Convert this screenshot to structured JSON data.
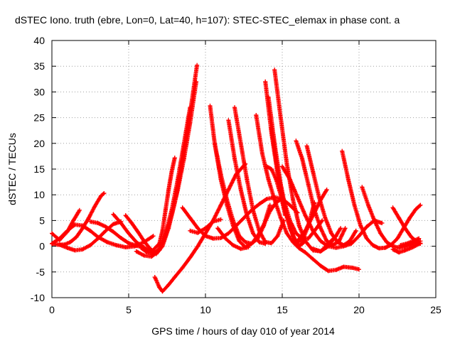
{
  "chart_data": {
    "type": "scatter",
    "title": "dSTEC Iono. truth (ebre, Lon=0, Lat=40, h=107): STEC-STEC_elemax in phase cont. a",
    "xlabel": "GPS time / hours of day 010 of year 2014",
    "ylabel": "dSTEC  / TECUs",
    "xlim": [
      0,
      25
    ],
    "ylim": [
      -10,
      40
    ],
    "xticks": [
      0,
      5,
      10,
      15,
      20,
      25
    ],
    "yticks": [
      -10,
      -5,
      0,
      5,
      10,
      15,
      20,
      25,
      30,
      35,
      40
    ],
    "grid": true,
    "marker": "plus",
    "color": "#ff0000",
    "series": [
      {
        "x": [
          0.0,
          0.4,
          0.8,
          1.2,
          1.6,
          2.0,
          2.4,
          2.8,
          3.2,
          3.4
        ],
        "y": [
          0.5,
          0.3,
          0.3,
          0.8,
          1.8,
          3.5,
          5.5,
          7.8,
          9.8,
          10.3
        ]
      },
      {
        "x": [
          0.0,
          0.5,
          1.0,
          1.4,
          1.8
        ],
        "y": [
          2.5,
          1.2,
          2.8,
          5.0,
          7.0
        ]
      },
      {
        "x": [
          0.0,
          0.5,
          1.0,
          1.5,
          2.0,
          2.5,
          3.0,
          3.6,
          4.2,
          4.8,
          5.4,
          6.0,
          6.6
        ],
        "y": [
          0.5,
          1.5,
          3.0,
          4.2,
          4.0,
          3.0,
          1.8,
          0.8,
          0.2,
          -0.2,
          0.0,
          0.8,
          2.0
        ]
      },
      {
        "x": [
          0.5,
          1.0,
          1.5,
          2.0,
          2.5,
          3.0,
          3.5,
          4.0,
          4.5
        ],
        "y": [
          0.3,
          -0.3,
          -0.8,
          -0.6,
          0.2,
          1.5,
          3.0,
          4.3,
          4.8
        ]
      },
      {
        "x": [
          2.5,
          3.0,
          3.5,
          4.0,
          4.5,
          5.0,
          5.5,
          6.0
        ],
        "y": [
          4.8,
          4.5,
          3.8,
          2.8,
          1.6,
          0.6,
          0.1,
          -0.2
        ]
      },
      {
        "x": [
          4.0,
          4.5,
          5.0,
          5.5,
          6.0,
          6.5,
          7.0,
          7.2,
          7.4,
          7.6,
          7.8,
          8.0
        ],
        "y": [
          6.2,
          4.5,
          2.5,
          0.8,
          -0.3,
          -1.0,
          0.5,
          3.0,
          7.0,
          11.0,
          14.5,
          17.2
        ]
      },
      {
        "x": [
          4.8,
          5.2,
          5.6,
          6.0,
          6.4,
          6.8,
          7.2,
          7.6,
          8.0,
          8.4,
          8.8,
          9.2,
          9.45
        ],
        "y": [
          6.0,
          4.5,
          2.8,
          1.0,
          -0.5,
          -1.5,
          0.0,
          3.5,
          8.5,
          15.0,
          22.0,
          30.0,
          35.2
        ]
      },
      {
        "x": [
          5.5,
          6.0,
          6.5,
          7.0,
          7.4,
          7.8,
          8.2,
          8.6,
          9.0,
          9.4
        ],
        "y": [
          -1.0,
          -1.8,
          -2.0,
          -0.8,
          2.0,
          6.0,
          11.0,
          17.0,
          24.0,
          32.0
        ]
      },
      {
        "x": [
          5.8,
          6.2,
          6.6,
          7.0,
          7.4,
          7.8,
          8.2,
          8.6,
          9.0
        ],
        "y": [
          -0.3,
          -1.2,
          -1.5,
          -0.5,
          2.5,
          7.0,
          13.0,
          20.0,
          27.0
        ]
      },
      {
        "x": [
          6.7,
          7.0,
          7.2,
          7.6,
          8.0,
          8.5,
          9.0,
          9.5,
          10.0,
          10.5,
          11.0,
          11.5,
          12.0,
          12.6
        ],
        "y": [
          -6.0,
          -8.0,
          -8.8,
          -7.5,
          -6.0,
          -4.2,
          -2.2,
          0.0,
          2.5,
          5.0,
          8.0,
          11.0,
          14.0,
          16.0
        ]
      },
      {
        "x": [
          8.5,
          9.0,
          9.5,
          10.0,
          10.5,
          11.0,
          11.5,
          12.0,
          12.5,
          13.0,
          13.5,
          14.0,
          14.5,
          15.0,
          15.5,
          16.0
        ],
        "y": [
          7.5,
          5.5,
          3.5,
          2.0,
          1.5,
          1.6,
          2.5,
          4.0,
          5.5,
          7.0,
          8.2,
          9.2,
          9.5,
          9.2,
          8.0,
          6.5
        ]
      },
      {
        "x": [
          9.0,
          9.5,
          10.0,
          10.5,
          11.0
        ],
        "y": [
          3.0,
          2.6,
          3.5,
          4.8,
          5.2
        ]
      },
      {
        "x": [
          10.3,
          10.6,
          11.0,
          11.4,
          11.8,
          12.2,
          12.6,
          13.0,
          13.4,
          13.8,
          14.2,
          14.6,
          15.0
        ],
        "y": [
          27.3,
          20.0,
          13.0,
          8.0,
          4.0,
          1.0,
          -0.2,
          0.5,
          2.0,
          4.2,
          6.8,
          8.5,
          9.3
        ]
      },
      {
        "x": [
          10.6,
          11.0,
          11.4,
          11.8,
          12.2,
          12.6,
          13.0,
          13.4,
          13.8,
          14.2
        ],
        "y": [
          20.0,
          14.0,
          9.0,
          5.0,
          2.0,
          0.8,
          0.5,
          1.5,
          4.0,
          8.0
        ]
      },
      {
        "x": [
          10.8,
          11.3,
          11.8,
          12.3,
          12.8
        ],
        "y": [
          3.5,
          1.5,
          0.2,
          -0.5,
          -0.2
        ]
      },
      {
        "x": [
          11.5,
          11.9,
          12.3,
          12.7,
          13.1,
          13.5,
          13.9
        ],
        "y": [
          24.5,
          17.0,
          11.0,
          6.0,
          2.5,
          0.8,
          0.5
        ]
      },
      {
        "x": [
          11.9,
          12.3,
          12.7,
          13.1,
          13.5,
          13.9,
          14.3,
          14.7,
          15.1
        ],
        "y": [
          27.0,
          20.0,
          13.0,
          7.0,
          3.0,
          0.8,
          0.6,
          2.0,
          5.0
        ]
      },
      {
        "x": [
          13.3,
          13.7,
          14.1,
          14.5,
          14.9,
          15.3,
          15.7,
          16.1,
          16.5,
          17.0,
          17.5,
          18.0,
          18.5,
          19.0,
          19.6,
          20.0
        ],
        "y": [
          25.5,
          18.0,
          13.0,
          9.0,
          5.5,
          2.5,
          0.8,
          -0.4,
          -1.2,
          -2.5,
          -3.8,
          -4.8,
          -4.6,
          -4.0,
          -4.2,
          -4.5
        ]
      },
      {
        "x": [
          13.9,
          14.3,
          14.7,
          15.1,
          15.5,
          15.9,
          16.3,
          16.7,
          17.1
        ],
        "y": [
          32.0,
          22.0,
          14.0,
          8.0,
          3.5,
          0.8,
          1.0,
          4.0,
          8.5
        ]
      },
      {
        "x": [
          14.1,
          14.5,
          14.9,
          15.3,
          15.7,
          16.1,
          16.5
        ],
        "y": [
          29.0,
          20.0,
          12.0,
          6.0,
          2.0,
          0.0,
          1.0
        ]
      },
      {
        "x": [
          14.3,
          14.7,
          15.1,
          15.5,
          15.9,
          16.3,
          16.7,
          17.1,
          17.6
        ],
        "y": [
          23.0,
          15.0,
          9.0,
          5.0,
          2.5,
          1.5,
          1.5,
          3.0,
          5.0
        ]
      },
      {
        "x": [
          14.0,
          14.3,
          14.6,
          14.9,
          15.2
        ],
        "y": [
          15.5,
          15.0,
          13.0,
          10.0,
          6.0
        ]
      },
      {
        "x": [
          14.5,
          14.9,
          15.3,
          15.7,
          16.1,
          16.5,
          17.0,
          17.5,
          18.0,
          18.5
        ],
        "y": [
          34.3,
          25.0,
          16.0,
          9.0,
          4.0,
          1.0,
          -0.8,
          -1.0,
          0.5,
          2.0
        ]
      },
      {
        "x": [
          15.0,
          15.5,
          16.0,
          16.5,
          17.0,
          17.5,
          18.0,
          18.5,
          19.0,
          19.5,
          20.0,
          20.5,
          21.0,
          21.5
        ],
        "y": [
          15.5,
          13.0,
          9.5,
          6.0,
          3.0,
          1.0,
          0.0,
          -0.3,
          0.0,
          0.5,
          2.0,
          3.8,
          5.0,
          4.5
        ]
      },
      {
        "x": [
          15.9,
          16.3,
          16.7,
          17.1,
          17.5,
          17.9,
          18.3,
          18.7,
          19.1
        ],
        "y": [
          20.5,
          17.0,
          12.0,
          7.0,
          3.5,
          1.0,
          0.2,
          1.0,
          3.5
        ]
      },
      {
        "x": [
          16.6,
          17.0,
          17.4,
          17.8,
          18.2,
          18.6,
          19.0,
          19.4,
          19.8
        ],
        "y": [
          19.5,
          14.5,
          9.5,
          5.5,
          2.5,
          0.8,
          0.2,
          1.0,
          3.0
        ]
      },
      {
        "x": [
          16.0,
          16.5,
          17.0,
          17.5,
          17.9
        ],
        "y": [
          1.0,
          3.0,
          6.0,
          9.0,
          11.0
        ]
      },
      {
        "x": [
          17.0,
          17.5,
          18.0,
          18.5,
          18.8
        ],
        "y": [
          -0.5,
          -1.0,
          0.0,
          2.0,
          3.5
        ]
      },
      {
        "x": [
          18.9,
          19.3,
          19.7,
          20.1,
          20.5,
          20.9,
          21.3,
          21.7,
          22.1,
          22.5,
          22.9,
          23.3,
          23.7,
          24.0
        ],
        "y": [
          18.5,
          13.0,
          8.0,
          4.0,
          1.5,
          0.2,
          -0.4,
          -0.3,
          0.3,
          1.5,
          3.5,
          5.5,
          7.2,
          8.0
        ]
      },
      {
        "x": [
          20.2,
          20.6,
          21.0,
          21.4,
          21.8,
          22.2,
          22.6,
          23.0,
          23.4,
          23.8,
          24.0
        ],
        "y": [
          11.5,
          8.0,
          5.0,
          2.5,
          0.8,
          0.0,
          -0.3,
          -0.1,
          0.3,
          0.8,
          1.0
        ]
      },
      {
        "x": [
          22.2,
          22.6,
          23.0,
          23.4,
          23.8,
          24.0
        ],
        "y": [
          7.5,
          5.5,
          3.5,
          1.8,
          0.8,
          0.5
        ]
      },
      {
        "x": [
          22.2,
          22.6,
          23.0,
          23.5,
          24.0
        ],
        "y": [
          -0.6,
          -1.2,
          -0.8,
          -0.2,
          0.6
        ]
      },
      {
        "x": [
          22.7,
          23.1,
          23.5,
          23.9
        ],
        "y": [
          0.2,
          0.5,
          1.0,
          1.5
        ]
      }
    ]
  }
}
